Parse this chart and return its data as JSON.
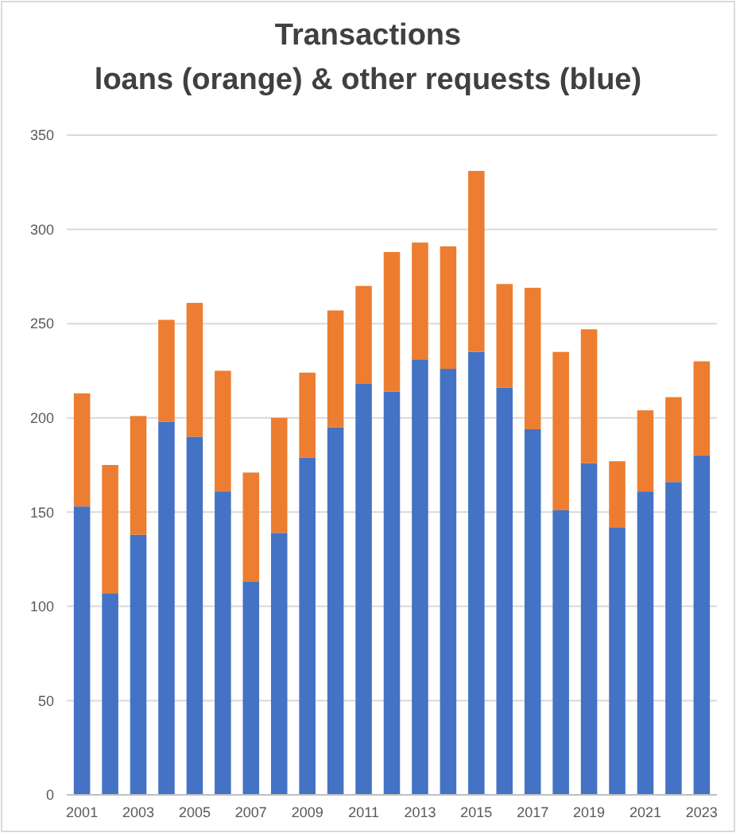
{
  "chart_data": {
    "type": "bar",
    "title": "Transactions",
    "subtitle": "loans (orange) & other requests (blue)",
    "categories": [
      "2001",
      null,
      "2003",
      null,
      "2005",
      null,
      "2007",
      null,
      "2009",
      null,
      "2011",
      null,
      "2013",
      null,
      "2015",
      null,
      "2017",
      null,
      "2019",
      null,
      "2021",
      null,
      "2023"
    ],
    "stacked": true,
    "series": [
      {
        "color": "#4472c4",
        "values": [
          153,
          107,
          138,
          198,
          190,
          161,
          113,
          139,
          179,
          195,
          218,
          214,
          231,
          226,
          235,
          216,
          194,
          151,
          176,
          142,
          161,
          166,
          180
        ]
      },
      {
        "color": "#ed7d31",
        "values": [
          60,
          68,
          63,
          54,
          71,
          64,
          58,
          61,
          45,
          62,
          52,
          74,
          62,
          65,
          96,
          55,
          75,
          84,
          71,
          35,
          43,
          45,
          50
        ]
      }
    ],
    "ylim": [
      0,
      350
    ],
    "yticks": [
      0,
      50,
      100,
      150,
      200,
      250,
      300,
      350
    ],
    "grid": "y"
  }
}
